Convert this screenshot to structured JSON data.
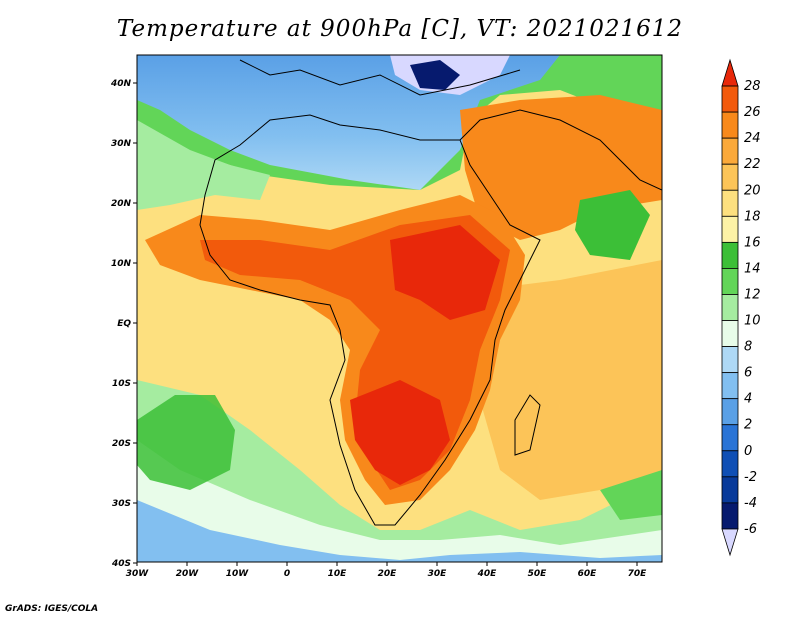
{
  "title": "Temperature at 900hPa [C], VT: 2021021612",
  "credit": "GrADS: IGES/COLA",
  "axes": {
    "lon_labels": [
      "30W",
      "20W",
      "10W",
      "0",
      "10E",
      "20E",
      "30E",
      "40E",
      "50E",
      "60E",
      "70E"
    ],
    "lat_labels": [
      "40N",
      "30N",
      "20N",
      "10N",
      "EQ",
      "10S",
      "20S",
      "30S",
      "40S"
    ],
    "lon_range": [
      -30,
      75
    ],
    "lat_range": [
      -40,
      45
    ]
  },
  "colorbar": {
    "labels": [
      "28",
      "26",
      "24",
      "22",
      "20",
      "18",
      "16",
      "14",
      "12",
      "10",
      "8",
      "6",
      "4",
      "2",
      "0",
      "-2",
      "-4",
      "-6"
    ],
    "colors": [
      "#e8280a",
      "#f25a0c",
      "#f8891b",
      "#fba93a",
      "#fcc458",
      "#fde07f",
      "#fdf2a6",
      "#3cbf37",
      "#62d558",
      "#a5eca0",
      "#e8fce9",
      "#aed8f5",
      "#82bff0",
      "#5aa0e6",
      "#2a74d6",
      "#0f4fb5",
      "#083a9a",
      "#061a6e",
      "#d8d8ff"
    ]
  },
  "regions": [
    {
      "name": "cold-greece-turkey",
      "color": "#d8d8ff"
    },
    {
      "name": "cold-aegean",
      "color": "#061a6e"
    }
  ]
}
